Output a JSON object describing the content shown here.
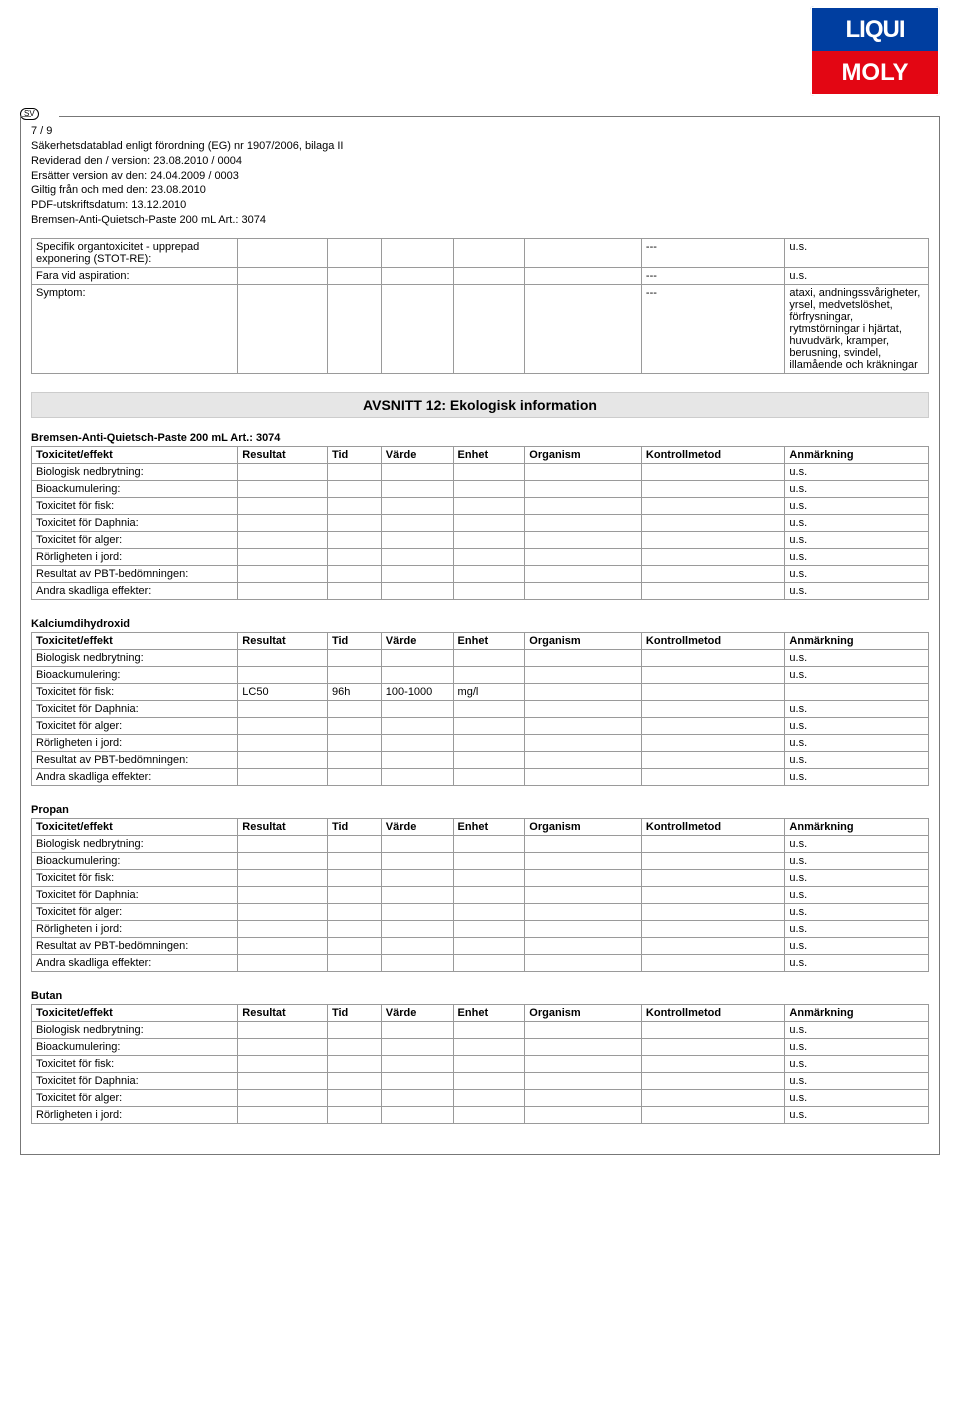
{
  "locale": "SV",
  "logo": {
    "top": "LIQUI",
    "bottom": "MOLY"
  },
  "header": {
    "page_num": "7 / 9",
    "title": "Säkerhetsdatablad enligt förordning (EG) nr 1907/2006, bilaga II",
    "revised": "Reviderad den / version: 23.08.2010  / 0004",
    "replaces": "Ersätter version av den: 24.04.2009  / 0003",
    "valid_from": "Giltig från och med den: 23.08.2010",
    "pdf_date": "PDF-utskriftsdatum: 13.12.2010",
    "product": "Bremsen-Anti-Quietsch-Paste 200 mL Art.: 3074"
  },
  "top_table": {
    "rows": [
      {
        "label": "Specifik organtoxicitet - upprepad exponering (STOT-RE):",
        "c6dash": "---",
        "note": "u.s."
      },
      {
        "label": "Fara vid aspiration:",
        "c6dash": "---",
        "note": "u.s."
      },
      {
        "label": "Symptom:",
        "c6dash": "---",
        "note": "ataxi, andningssvårigheter, yrsel, medvetslöshet, förfrysningar, rytmstörningar i hjärtat, huvudvärk, kramper, berusning, svindel, illamående och kräkningar"
      }
    ]
  },
  "section_title": "AVSNITT 12: Ekologisk information",
  "tox_header": [
    "Toxicitet/effekt",
    "Resultat",
    "Tid",
    "Värde",
    "Enhet",
    "Organism",
    "Kontrollmetod",
    "Anmärkning"
  ],
  "tables": [
    {
      "title": "Bremsen-Anti-Quietsch-Paste 200 mL Art.: 3074",
      "rows": [
        {
          "label": "Biologisk nedbrytning:",
          "note": "u.s."
        },
        {
          "label": "Bioackumulering:",
          "note": "u.s."
        },
        {
          "label": "Toxicitet för fisk:",
          "note": "u.s."
        },
        {
          "label": "Toxicitet för Daphnia:",
          "note": "u.s."
        },
        {
          "label": "Toxicitet för alger:",
          "note": "u.s."
        },
        {
          "label": "Rörligheten i jord:",
          "note": "u.s."
        },
        {
          "label": "Resultat av PBT-bedömningen:",
          "note": "u.s."
        },
        {
          "label": "Andra skadliga effekter:",
          "note": "u.s."
        }
      ]
    },
    {
      "title": "Kalciumdihydroxid",
      "rows": [
        {
          "label": "Biologisk nedbrytning:",
          "note": "u.s."
        },
        {
          "label": "Bioackumulering:",
          "note": "u.s."
        },
        {
          "label": "Toxicitet för fisk:",
          "resultat": "LC50",
          "tid": "96h",
          "varde": "100-1000",
          "enhet": "mg/l"
        },
        {
          "label": "Toxicitet för Daphnia:",
          "note": "u.s."
        },
        {
          "label": "Toxicitet för alger:",
          "note": "u.s."
        },
        {
          "label": "Rörligheten i jord:",
          "note": "u.s."
        },
        {
          "label": "Resultat av PBT-bedömningen:",
          "note": "u.s."
        },
        {
          "label": "Andra skadliga effekter:",
          "note": "u.s."
        }
      ]
    },
    {
      "title": "Propan",
      "rows": [
        {
          "label": "Biologisk nedbrytning:",
          "note": "u.s."
        },
        {
          "label": "Bioackumulering:",
          "note": "u.s."
        },
        {
          "label": "Toxicitet för fisk:",
          "note": "u.s."
        },
        {
          "label": "Toxicitet för Daphnia:",
          "note": "u.s."
        },
        {
          "label": "Toxicitet för alger:",
          "note": "u.s."
        },
        {
          "label": "Rörligheten i jord:",
          "note": "u.s."
        },
        {
          "label": "Resultat av PBT-bedömningen:",
          "note": "u.s."
        },
        {
          "label": "Andra skadliga effekter:",
          "note": "u.s."
        }
      ]
    },
    {
      "title": "Butan",
      "rows": [
        {
          "label": "Biologisk nedbrytning:",
          "note": "u.s."
        },
        {
          "label": "Bioackumulering:",
          "note": "u.s."
        },
        {
          "label": "Toxicitet för fisk:",
          "note": "u.s."
        },
        {
          "label": "Toxicitet för Daphnia:",
          "note": "u.s."
        },
        {
          "label": "Toxicitet för alger:",
          "note": "u.s."
        },
        {
          "label": "Rörligheten i jord:",
          "note": "u.s."
        }
      ]
    }
  ]
}
